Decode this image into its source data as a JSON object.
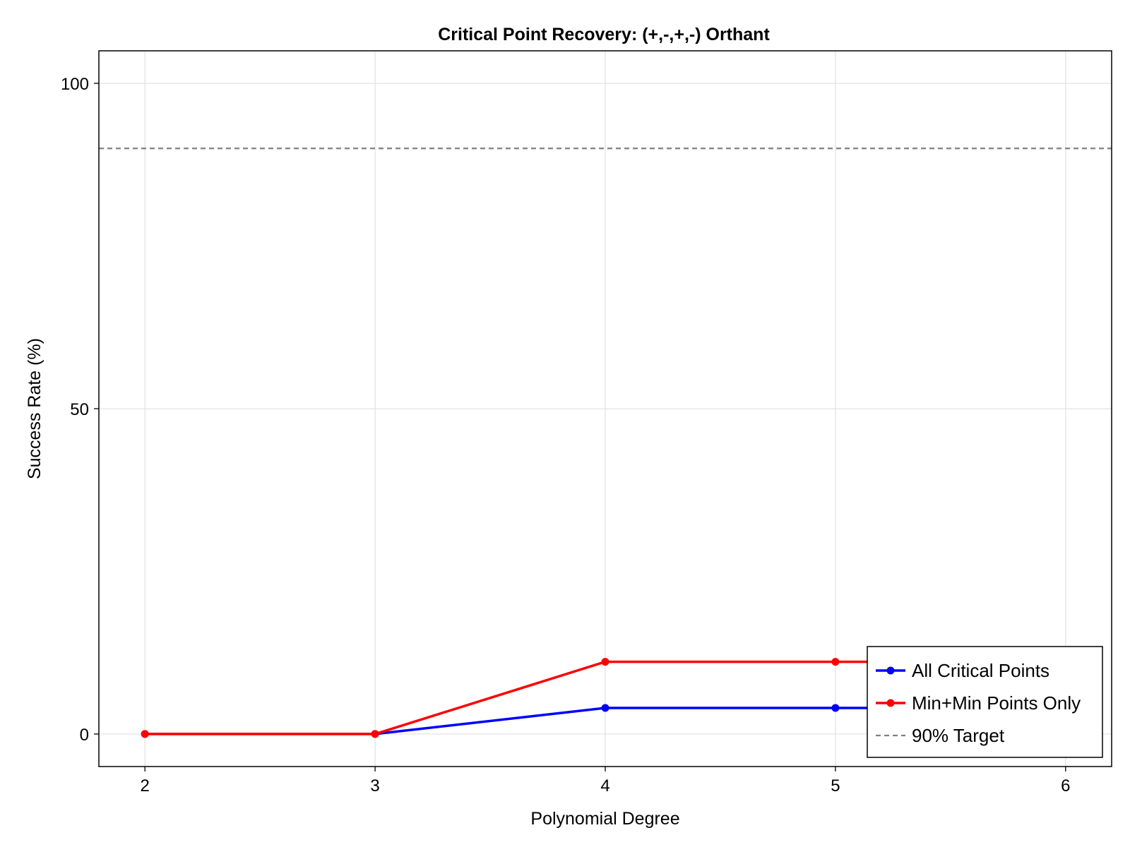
{
  "chart_data": {
    "type": "line",
    "title": "Critical Point Recovery: (+,-,+,-) Orthant",
    "xlabel": "Polynomial Degree",
    "ylabel": "Success Rate (%)",
    "xlim": [
      1.8,
      6.2
    ],
    "ylim": [
      -5,
      105
    ],
    "xticks": [
      2,
      3,
      4,
      5,
      6
    ],
    "yticks": [
      0,
      50,
      100
    ],
    "grid": true,
    "legend_position": "bottom-right",
    "series": [
      {
        "name": "All Critical Points",
        "color": "#0000ff",
        "marker": "circle",
        "x": [
          2,
          3,
          4,
          5,
          6
        ],
        "y": [
          0,
          0,
          4,
          4,
          4
        ]
      },
      {
        "name": "Min+Min Points Only",
        "color": "#ff0000",
        "marker": "circle",
        "x": [
          2,
          3,
          4,
          5,
          6
        ],
        "y": [
          0,
          0,
          11.1,
          11.1,
          11.1
        ]
      }
    ],
    "reference_lines": [
      {
        "name": "90% Target",
        "y": 90,
        "color": "#808080",
        "style": "dashed"
      }
    ]
  }
}
